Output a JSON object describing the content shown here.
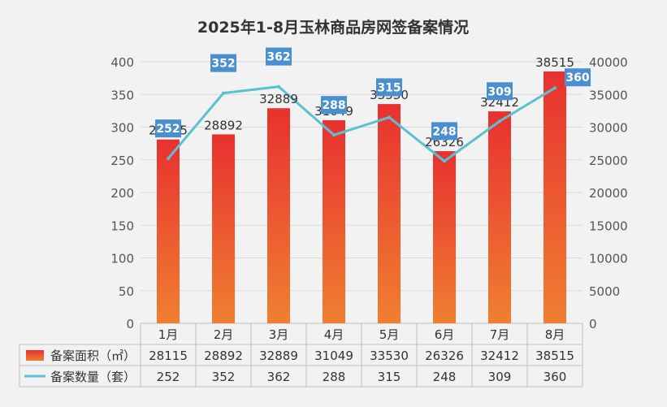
{
  "chart_data": {
    "type": "bar",
    "title": "2025年1-8月玉林商品房网签备案情况",
    "categories": [
      "1月",
      "2月",
      "3月",
      "4月",
      "5月",
      "6月",
      "7月",
      "8月"
    ],
    "series": [
      {
        "name": "备案面积（㎡）",
        "type": "bar",
        "axis": "right",
        "values": [
          28115,
          28892,
          32889,
          31049,
          33530,
          26326,
          32412,
          38515
        ]
      },
      {
        "name": "备案数量（套）",
        "type": "line",
        "axis": "left",
        "values": [
          252,
          352,
          362,
          288,
          315,
          248,
          309,
          360
        ]
      }
    ],
    "y_left": {
      "min": 0,
      "max": 400,
      "ticks": [
        0,
        50,
        100,
        150,
        200,
        250,
        300,
        350,
        400
      ]
    },
    "y_right": {
      "min": 0,
      "max": 40000,
      "ticks": [
        0,
        5000,
        10000,
        15000,
        20000,
        25000,
        30000,
        35000,
        40000
      ]
    },
    "grid": true,
    "legend": "data-table-bottom",
    "colors": {
      "bar_top": "#e8312f",
      "bar_bottom": "#f07f31",
      "line": "#5bc0d2",
      "label_box": "#4a8fd0",
      "grid": "#d9d9d9",
      "background": "#f2f2f2"
    }
  }
}
